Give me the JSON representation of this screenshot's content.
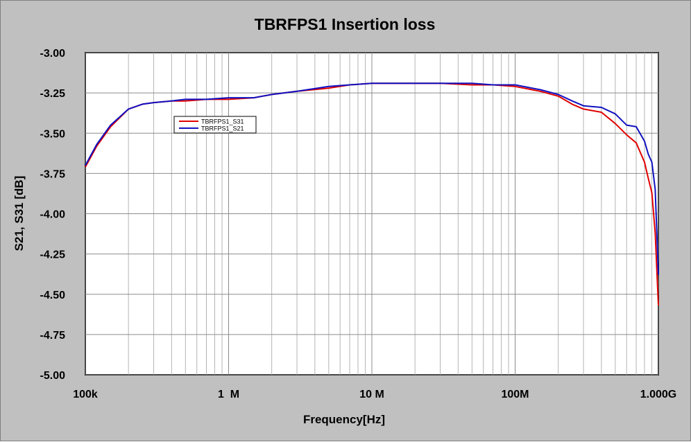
{
  "chart_data": {
    "type": "line",
    "title": "TBRFPS1 Insertion loss",
    "xlabel": "Frequency[Hz]",
    "ylabel": "S21, S31 [dB]",
    "xscale": "log",
    "xlim": [
      100000,
      1000000000
    ],
    "ylim": [
      -5.0,
      -3.0
    ],
    "grid": true,
    "legend_position": "upper-left",
    "x_ticks": [
      {
        "value": 100000,
        "label": "100k"
      },
      {
        "value": 1000000,
        "label": "1  M"
      },
      {
        "value": 10000000,
        "label": "10 M"
      },
      {
        "value": 100000000,
        "label": "100M"
      },
      {
        "value": 1000000000,
        "label": "1.000G"
      }
    ],
    "y_ticks": [
      {
        "value": -3.0,
        "label": "-3.00"
      },
      {
        "value": -3.25,
        "label": "-3.25"
      },
      {
        "value": -3.5,
        "label": "-3.50"
      },
      {
        "value": -3.75,
        "label": "-3.75"
      },
      {
        "value": -4.0,
        "label": "-4.00"
      },
      {
        "value": -4.25,
        "label": "-4.25"
      },
      {
        "value": -4.5,
        "label": "-4.50"
      },
      {
        "value": -4.75,
        "label": "-4.75"
      },
      {
        "value": -5.0,
        "label": "-5.00"
      }
    ],
    "series": [
      {
        "name": "TBRFPS1_S31",
        "color": "#e00000",
        "x": [
          100000,
          120000,
          150000,
          200000,
          250000,
          300000,
          400000,
          500000,
          700000,
          1000000,
          1500000,
          2000000,
          3000000,
          5000000,
          7000000,
          10000000,
          20000000,
          30000000,
          50000000,
          70000000,
          100000000,
          150000000,
          200000000,
          250000000,
          300000000,
          400000000,
          500000000,
          600000000,
          700000000,
          800000000,
          850000000,
          900000000,
          950000000,
          1000000000
        ],
        "y": [
          -3.71,
          -3.58,
          -3.46,
          -3.35,
          -3.32,
          -3.31,
          -3.3,
          -3.3,
          -3.29,
          -3.29,
          -3.28,
          -3.26,
          -3.24,
          -3.22,
          -3.2,
          -3.19,
          -3.19,
          -3.19,
          -3.2,
          -3.2,
          -3.21,
          -3.24,
          -3.27,
          -3.32,
          -3.35,
          -3.37,
          -3.44,
          -3.51,
          -3.56,
          -3.68,
          -3.78,
          -3.87,
          -4.12,
          -4.57
        ]
      },
      {
        "name": "TBRFPS1_S21",
        "color": "#1010c0",
        "x": [
          100000,
          120000,
          150000,
          200000,
          250000,
          300000,
          400000,
          500000,
          700000,
          1000000,
          1500000,
          2000000,
          3000000,
          5000000,
          7000000,
          10000000,
          20000000,
          30000000,
          50000000,
          70000000,
          100000000,
          150000000,
          200000000,
          250000000,
          300000000,
          400000000,
          500000000,
          600000000,
          700000000,
          800000000,
          850000000,
          900000000,
          950000000,
          1000000000
        ],
        "y": [
          -3.7,
          -3.57,
          -3.45,
          -3.35,
          -3.32,
          -3.31,
          -3.3,
          -3.29,
          -3.29,
          -3.28,
          -3.28,
          -3.26,
          -3.24,
          -3.21,
          -3.2,
          -3.19,
          -3.19,
          -3.19,
          -3.19,
          -3.2,
          -3.2,
          -3.23,
          -3.26,
          -3.3,
          -3.33,
          -3.34,
          -3.38,
          -3.45,
          -3.46,
          -3.55,
          -3.63,
          -3.68,
          -3.85,
          -4.38
        ]
      }
    ]
  }
}
